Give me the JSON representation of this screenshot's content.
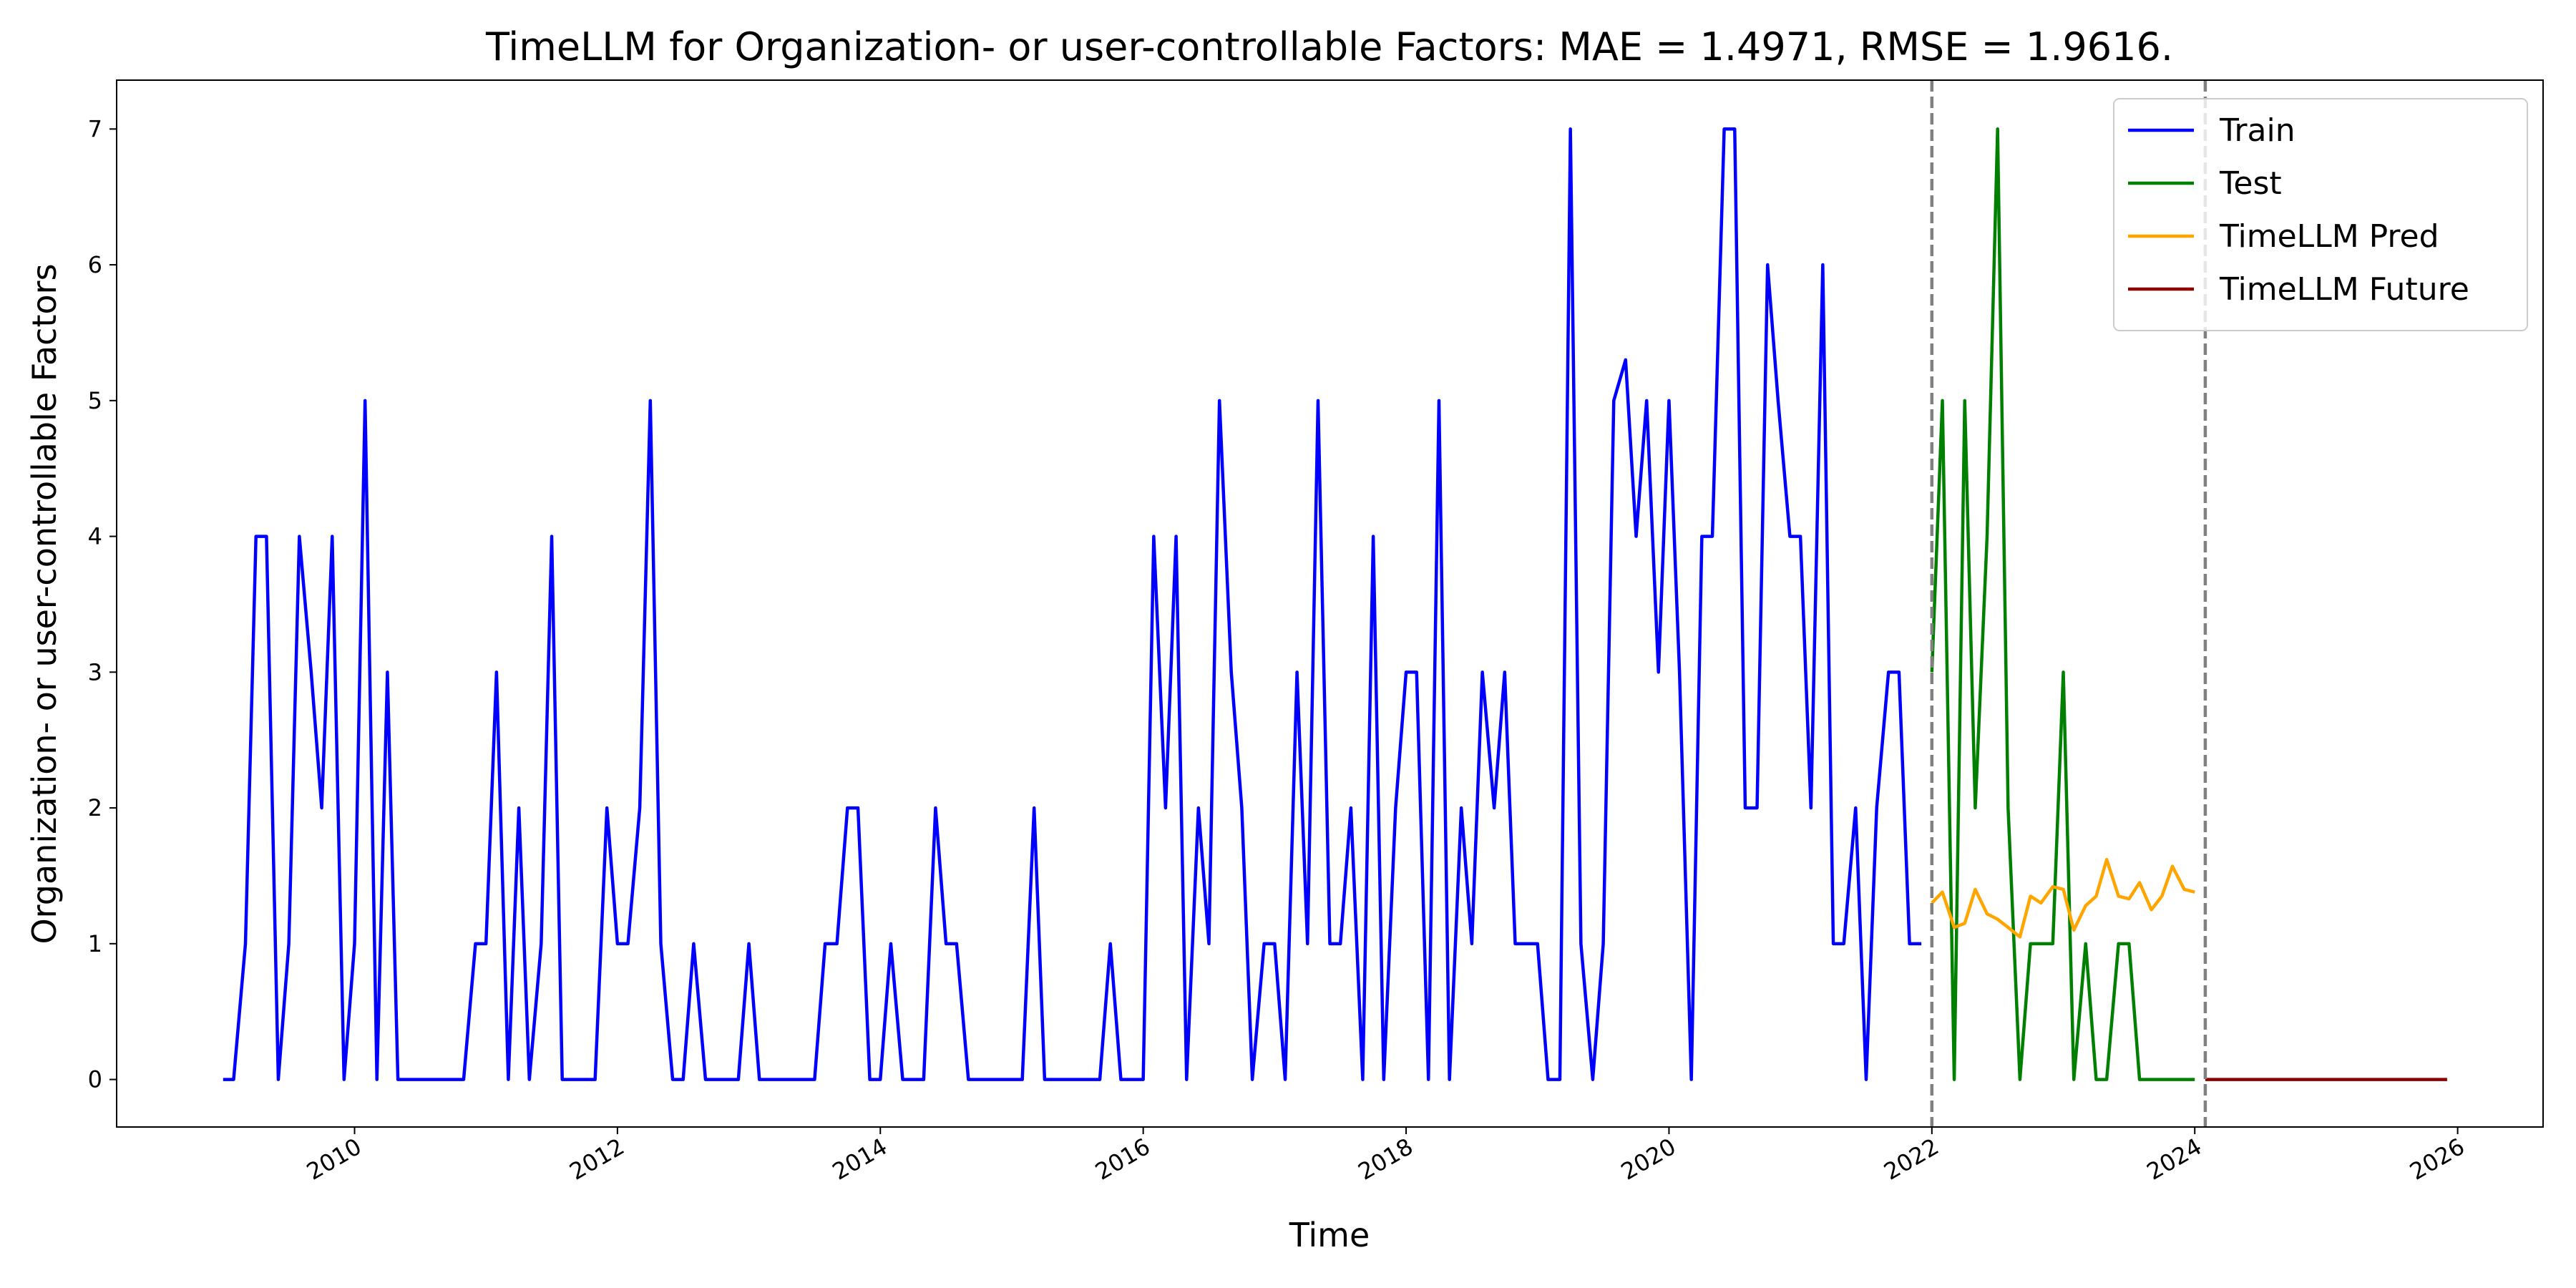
{
  "chart_data": {
    "type": "line",
    "title": "TimeLLM for Organization- or user-controllable Factors: MAE = 1.4971, RMSE = 1.9616.",
    "x_label": "Time",
    "y_label": "Organization- or user-controllable Factors",
    "xlim": [
      2008.19,
      2026.65
    ],
    "ylim": [
      -0.35,
      7.36
    ],
    "xticks": [
      2010,
      2012,
      2014,
      2016,
      2018,
      2020,
      2022,
      2024,
      2026
    ],
    "yticks": [
      0,
      1,
      2,
      3,
      4,
      5,
      6,
      7
    ],
    "grid": false,
    "legend": "upper right",
    "vlines": [
      2022,
      2024.08
    ],
    "vline_color": "#808080",
    "series": [
      {
        "name": "Train",
        "color": "#0000ff",
        "x": [
          2009,
          2009.08,
          2009.17,
          2009.25,
          2009.33,
          2009.42,
          2009.5,
          2009.58,
          2009.67,
          2009.75,
          2009.83,
          2009.92,
          2010,
          2010.08,
          2010.17,
          2010.25,
          2010.33,
          2010.42,
          2010.5,
          2010.58,
          2010.67,
          2010.75,
          2010.83,
          2010.92,
          2011,
          2011.08,
          2011.17,
          2011.25,
          2011.33,
          2011.42,
          2011.5,
          2011.58,
          2011.67,
          2011.75,
          2011.83,
          2011.92,
          2012,
          2012.08,
          2012.17,
          2012.25,
          2012.33,
          2012.42,
          2012.5,
          2012.58,
          2012.67,
          2012.75,
          2012.83,
          2012.92,
          2013,
          2013.08,
          2013.17,
          2013.25,
          2013.33,
          2013.42,
          2013.5,
          2013.58,
          2013.67,
          2013.75,
          2013.83,
          2013.92,
          2014,
          2014.08,
          2014.17,
          2014.25,
          2014.33,
          2014.42,
          2014.5,
          2014.58,
          2014.67,
          2014.75,
          2014.83,
          2014.92,
          2015,
          2015.08,
          2015.17,
          2015.25,
          2015.33,
          2015.42,
          2015.5,
          2015.58,
          2015.67,
          2015.75,
          2015.83,
          2015.92,
          2016,
          2016.08,
          2016.17,
          2016.25,
          2016.33,
          2016.42,
          2016.5,
          2016.58,
          2016.67,
          2016.75,
          2016.83,
          2016.92,
          2017,
          2017.08,
          2017.17,
          2017.25,
          2017.33,
          2017.42,
          2017.5,
          2017.58,
          2017.67,
          2017.75,
          2017.83,
          2017.92,
          2018,
          2018.08,
          2018.17,
          2018.25,
          2018.33,
          2018.42,
          2018.5,
          2018.58,
          2018.67,
          2018.75,
          2018.83,
          2018.92,
          2019,
          2019.08,
          2019.17,
          2019.25,
          2019.33,
          2019.42,
          2019.5,
          2019.58,
          2019.67,
          2019.75,
          2019.83,
          2019.92,
          2020,
          2020.08,
          2020.17,
          2020.25,
          2020.33,
          2020.42,
          2020.5,
          2020.58,
          2020.67,
          2020.75,
          2020.83,
          2020.92,
          2021,
          2021.08,
          2021.17,
          2021.25,
          2021.33,
          2021.42,
          2021.5,
          2021.58,
          2021.67,
          2021.75,
          2021.83,
          2021.92
        ],
        "values": [
          0,
          0,
          1,
          4,
          4,
          0,
          1,
          4,
          3,
          2,
          4,
          0,
          1,
          5,
          0,
          3,
          0,
          0,
          0,
          0,
          0,
          0,
          0,
          1,
          1,
          3,
          0,
          2,
          0,
          1,
          4,
          0,
          0,
          0,
          0,
          2,
          1,
          1,
          2,
          5,
          1,
          0,
          0,
          1,
          0,
          0,
          0,
          0,
          1,
          0,
          0,
          0,
          0,
          0,
          0,
          1,
          1,
          2,
          2,
          0,
          0,
          1,
          0,
          0,
          0,
          2,
          1,
          1,
          0,
          0,
          0,
          0,
          0,
          0,
          2,
          0,
          0,
          0,
          0,
          0,
          0,
          1,
          0,
          0,
          0,
          4,
          2,
          4,
          0,
          2,
          1,
          5,
          3,
          2,
          0,
          1,
          1,
          0,
          3,
          1,
          5,
          1,
          1,
          2,
          0,
          4,
          0,
          2,
          3,
          3,
          0,
          5,
          0,
          2,
          1,
          3,
          2,
          3,
          1,
          1,
          1,
          0,
          0,
          7,
          1,
          0,
          1,
          5,
          5.3,
          4,
          5,
          3,
          5,
          3,
          0,
          4,
          4,
          7,
          7,
          2,
          2,
          6,
          5,
          4,
          4,
          2,
          6,
          1,
          1,
          2,
          0,
          2,
          3,
          3,
          1,
          1
        ]
      },
      {
        "name": "Test",
        "color": "#008000",
        "x": [
          2022,
          2022.08,
          2022.17,
          2022.25,
          2022.33,
          2022.42,
          2022.5,
          2022.58,
          2022.67,
          2022.75,
          2022.83,
          2022.92,
          2023,
          2023.08,
          2023.17,
          2023.25,
          2023.33,
          2023.42,
          2023.5,
          2023.58,
          2023.67,
          2023.75,
          2023.83,
          2023.92,
          2024
        ],
        "values": [
          3,
          5,
          0,
          5,
          2,
          4,
          7,
          2,
          0,
          1,
          1,
          1,
          3,
          0,
          1,
          0,
          0,
          1,
          1,
          0,
          0,
          0,
          0,
          0,
          0
        ]
      },
      {
        "name": "TimeLLM Pred",
        "color": "#ffa500",
        "x": [
          2022,
          2022.08,
          2022.17,
          2022.25,
          2022.33,
          2022.42,
          2022.5,
          2022.58,
          2022.67,
          2022.75,
          2022.83,
          2022.92,
          2023,
          2023.08,
          2023.17,
          2023.25,
          2023.33,
          2023.42,
          2023.5,
          2023.58,
          2023.67,
          2023.75,
          2023.83,
          2023.92,
          2024
        ],
        "values": [
          1.3,
          1.38,
          1.12,
          1.15,
          1.4,
          1.22,
          1.18,
          1.12,
          1.05,
          1.35,
          1.3,
          1.42,
          1.4,
          1.1,
          1.28,
          1.35,
          1.62,
          1.35,
          1.33,
          1.45,
          1.25,
          1.35,
          1.57,
          1.4,
          1.38
        ]
      },
      {
        "name": "TimeLLM Future",
        "color": "#8b0000",
        "x": [
          2024.08,
          2024.17,
          2024.25,
          2024.33,
          2024.42,
          2024.5,
          2024.58,
          2024.67,
          2024.75,
          2024.83,
          2024.92,
          2025,
          2025.08,
          2025.17,
          2025.25,
          2025.33,
          2025.42,
          2025.5,
          2025.58,
          2025.67,
          2025.75,
          2025.83,
          2025.92
        ],
        "values": [
          0,
          0,
          0,
          0,
          0,
          0,
          0,
          0,
          0,
          0,
          0,
          0,
          0,
          0,
          0,
          0,
          0,
          0,
          0,
          0,
          0,
          0,
          0
        ]
      }
    ]
  }
}
